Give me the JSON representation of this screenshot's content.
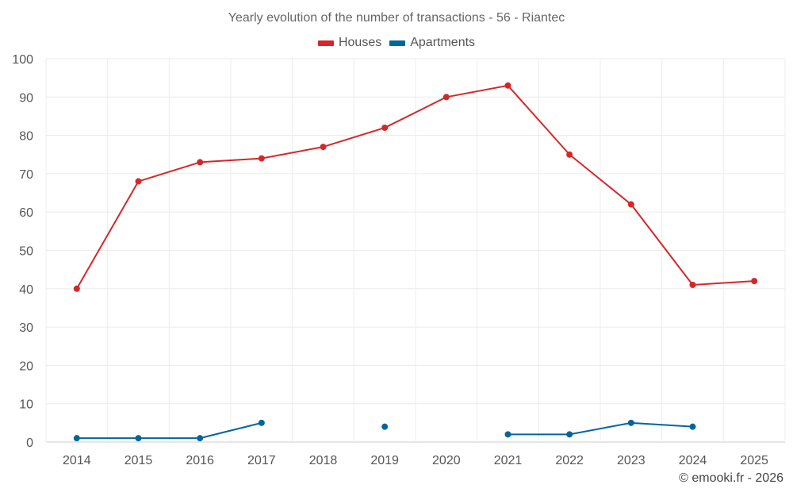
{
  "chart_data": {
    "type": "line",
    "title": "Yearly evolution of the number of transactions - 56 - Riantec",
    "categories": [
      "2014",
      "2015",
      "2016",
      "2017",
      "2018",
      "2019",
      "2020",
      "2021",
      "2022",
      "2023",
      "2024",
      "2025"
    ],
    "ylim": [
      0,
      100
    ],
    "yticks": [
      0,
      10,
      20,
      30,
      40,
      50,
      60,
      70,
      80,
      90,
      100
    ],
    "grid": true,
    "legend_position": "top-center",
    "series": [
      {
        "name": "Houses",
        "color": "#d62728",
        "values": [
          40,
          68,
          73,
          74,
          77,
          82,
          90,
          93,
          75,
          62,
          41,
          42
        ]
      },
      {
        "name": "Apartments",
        "color": "#00669c",
        "values": [
          1,
          1,
          1,
          5,
          null,
          4,
          null,
          2,
          2,
          5,
          4,
          null
        ]
      }
    ]
  },
  "credit": "© emooki.fr - 2026"
}
